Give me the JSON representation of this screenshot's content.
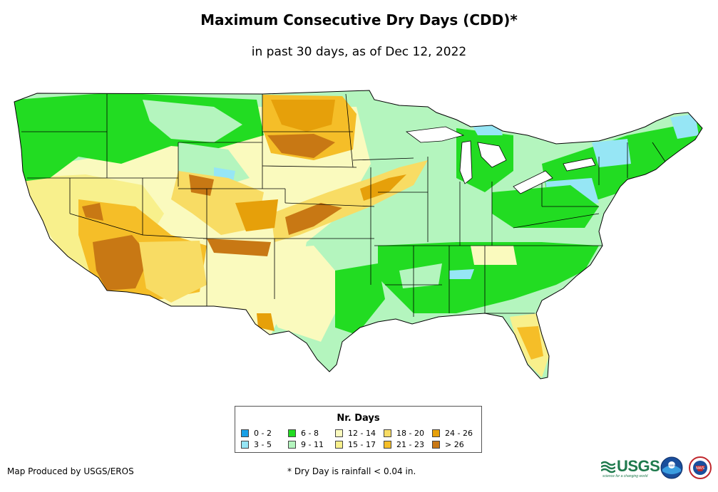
{
  "title": "Maximum Consecutive Dry Days (CDD)*",
  "subtitle": "in past 30 days, as of Dec 12, 2022",
  "legend": {
    "title": "Nr. Days",
    "items": [
      {
        "label": "0 - 2",
        "color": "#19a0e6"
      },
      {
        "label": "3 - 5",
        "color": "#96e6f5"
      },
      {
        "label": "6 - 8",
        "color": "#22dc22"
      },
      {
        "label": "9 - 11",
        "color": "#b4f5be"
      },
      {
        "label": "12 - 14",
        "color": "#fafabe"
      },
      {
        "label": "15 - 17",
        "color": "#f8f08c"
      },
      {
        "label": "18 - 20",
        "color": "#f8dc64"
      },
      {
        "label": "21 - 23",
        "color": "#f5be28"
      },
      {
        "label": "24 - 26",
        "color": "#e6a00a"
      },
      {
        "label": "> 26",
        "color": "#c87814"
      }
    ]
  },
  "footer": {
    "credit": "Map Produced by USGS/EROS",
    "note": "* Dry Day is rainfall < 0.04 in."
  },
  "logos": {
    "usgs": "USGS",
    "usgs_tagline": "science for a changing world",
    "noaa": "noaa",
    "nws": "NWS"
  }
}
